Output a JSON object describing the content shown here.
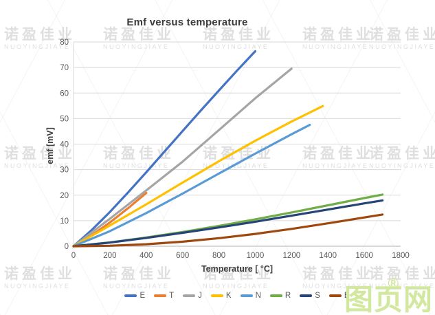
{
  "watermark": {
    "cn": "诺盈佳业",
    "en": "NUOYINGJIAYE"
  },
  "logo": {
    "text": "图页网",
    "reg": "®",
    "color": "#d2e89e"
  },
  "chart_data": {
    "type": "line",
    "title": "Emf versus temperature",
    "xlabel": "Temperature [ °C]",
    "ylabel": "emf [mV]",
    "xlim": [
      0,
      1800
    ],
    "ylim": [
      0,
      80
    ],
    "xticks": [
      0,
      200,
      400,
      600,
      800,
      1000,
      1200,
      1400,
      1600,
      1800
    ],
    "yticks": [
      0,
      10,
      20,
      30,
      40,
      50,
      60,
      70,
      80
    ],
    "grid": "horizontal",
    "legend_position": "bottom",
    "axis_colors": {
      "gridline": "#d9d9d9",
      "axis_line": "#bfbfbf",
      "tick_text": "#595959"
    },
    "series": [
      {
        "name": "E",
        "color": "#4472C4",
        "x": [
          0,
          100,
          200,
          300,
          400,
          500,
          600,
          700,
          800,
          900,
          1000
        ],
        "y": [
          0,
          6.32,
          13.42,
          21.04,
          28.95,
          37.01,
          45.09,
          53.11,
          61.02,
          68.79,
          76.37
        ]
      },
      {
        "name": "T",
        "color": "#ED7D31",
        "x": [
          0,
          100,
          200,
          300,
          400
        ],
        "y": [
          0,
          4.28,
          9.29,
          14.86,
          20.87
        ]
      },
      {
        "name": "J",
        "color": "#A5A5A5",
        "x": [
          0,
          200,
          400,
          600,
          800,
          1000,
          1200
        ],
        "y": [
          0,
          10.78,
          21.85,
          33.1,
          45.49,
          57.95,
          69.55
        ]
      },
      {
        "name": "K",
        "color": "#FFC000",
        "x": [
          0,
          200,
          400,
          600,
          800,
          1000,
          1200,
          1372
        ],
        "y": [
          0,
          8.14,
          16.4,
          24.91,
          33.28,
          41.28,
          48.84,
          54.89
        ]
      },
      {
        "name": "N",
        "color": "#5B9BD5",
        "x": [
          0,
          200,
          400,
          600,
          800,
          1000,
          1200,
          1300
        ],
        "y": [
          0,
          5.91,
          12.97,
          20.61,
          28.46,
          36.26,
          43.85,
          47.51
        ]
      },
      {
        "name": "R",
        "color": "#70AD47",
        "x": [
          0,
          200,
          400,
          600,
          800,
          1000,
          1200,
          1400,
          1600,
          1700
        ],
        "y": [
          0,
          1.47,
          3.41,
          5.58,
          7.95,
          10.51,
          13.23,
          16.04,
          18.85,
          20.22
        ]
      },
      {
        "name": "S",
        "color": "#264478",
        "x": [
          0,
          200,
          400,
          600,
          800,
          1000,
          1200,
          1400,
          1600,
          1700
        ],
        "y": [
          0,
          1.44,
          3.26,
          5.24,
          7.35,
          9.59,
          11.95,
          14.37,
          16.78,
          17.95
        ]
      },
      {
        "name": "B",
        "color": "#9E480E",
        "x": [
          0,
          200,
          400,
          600,
          800,
          1000,
          1200,
          1400,
          1600,
          1700
        ],
        "y": [
          0,
          0.18,
          0.79,
          1.79,
          3.15,
          4.83,
          6.79,
          8.96,
          11.26,
          12.43
        ]
      }
    ]
  }
}
